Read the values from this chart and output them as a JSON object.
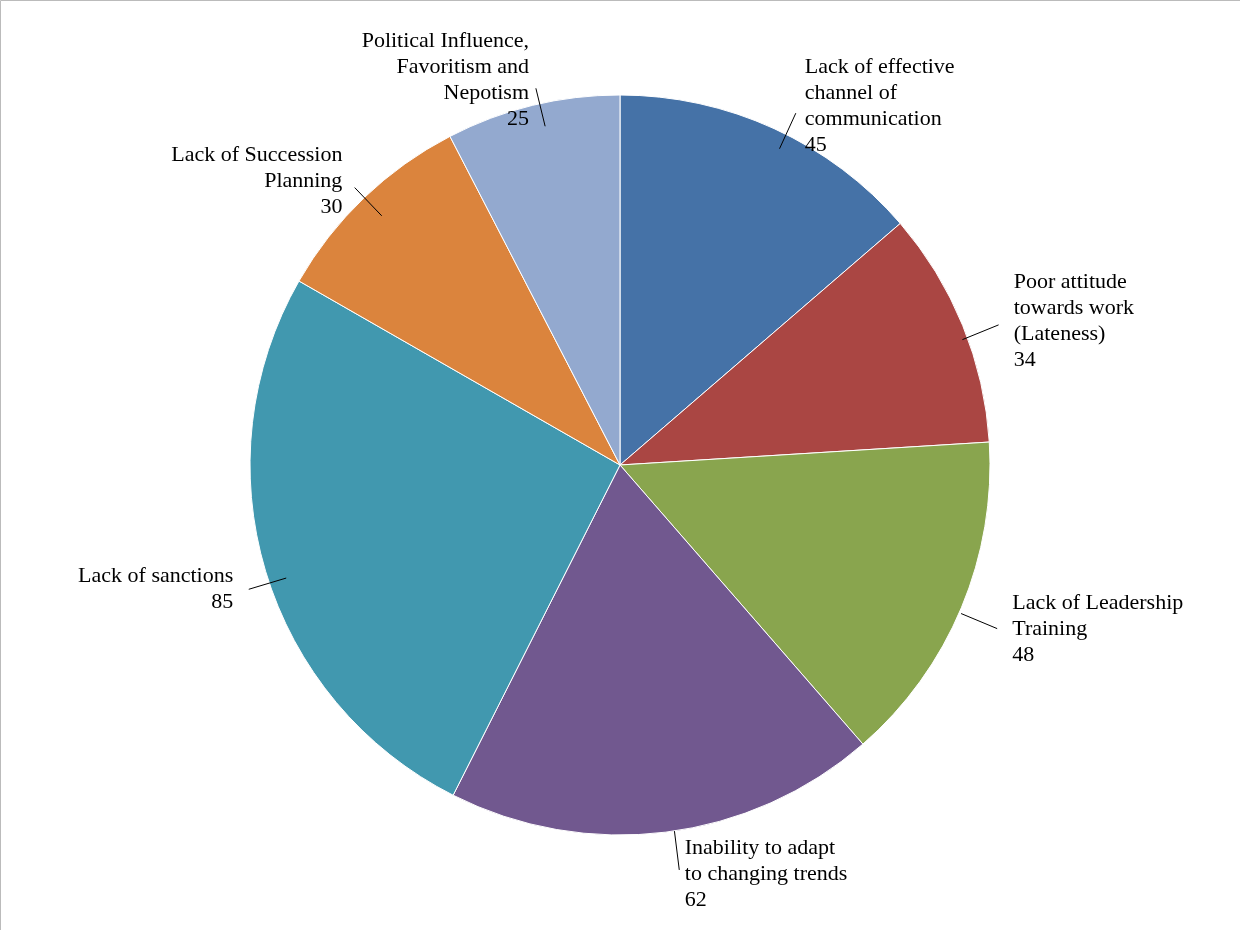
{
  "chart_data": {
    "type": "pie",
    "categories": [
      "Lack of effective channel of communication",
      "Poor attitude towards work (Lateness)",
      "Lack of Leadership Training",
      "Inability to adapt to changing trends",
      "Lack of sanctions",
      "Lack of Succession Planning",
      "Political Influence, Favoritism and Nepotism"
    ],
    "values": [
      45,
      34,
      48,
      62,
      85,
      30,
      25
    ],
    "colors": [
      "#4572a7",
      "#aa4643",
      "#89a54e",
      "#71588f",
      "#4198af",
      "#db843d",
      "#93a9cf"
    ],
    "data_labels": true
  }
}
